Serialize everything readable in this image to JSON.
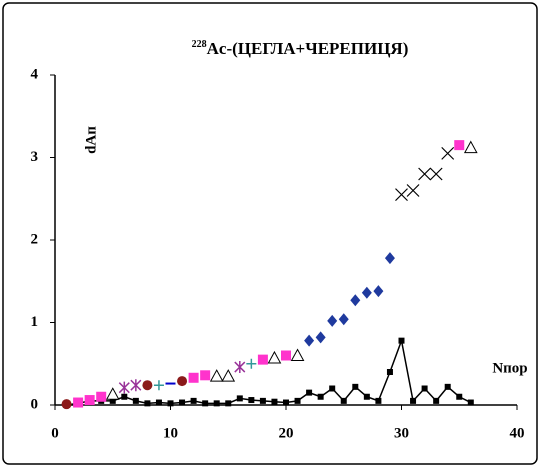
{
  "chart_data": {
    "type": "scatter",
    "title_superscript": "228",
    "title": "Ac-(ЦЕГЛА+ЧЕРЕПИЦЯ)",
    "y_label": "dAп",
    "x_label": "Nпор",
    "xlim": [
      0,
      40
    ],
    "ylim": [
      0,
      4
    ],
    "xticks": [
      0,
      10,
      20,
      30,
      40
    ],
    "yticks": [
      0,
      1,
      2,
      3,
      4
    ],
    "grid": false,
    "series": [
      {
        "marker": "line-square",
        "color": "#000000",
        "x": [
          1,
          2,
          3,
          4,
          5,
          6,
          7,
          8,
          9,
          10,
          11,
          12,
          13,
          14,
          15,
          16,
          17,
          18,
          19,
          20,
          21,
          22,
          23,
          24,
          25,
          26,
          27,
          28,
          29,
          30,
          31,
          32,
          33,
          34,
          35,
          36
        ],
        "values": [
          0,
          0.02,
          0.05,
          0.05,
          0.05,
          0.1,
          0.05,
          0.02,
          0.03,
          0.02,
          0.03,
          0.05,
          0.02,
          0.02,
          0.02,
          0.08,
          0.06,
          0.05,
          0.04,
          0.03,
          0.05,
          0.15,
          0.1,
          0.2,
          0.05,
          0.22,
          0.1,
          0.05,
          0.4,
          0.78,
          0.05,
          0.2,
          0.05,
          0.22,
          0.1,
          0.03
        ]
      },
      {
        "marker": "circle",
        "color": "#8b1a1a",
        "x": [
          1,
          8,
          11
        ],
        "values": [
          0.01,
          0.24,
          0.29
        ]
      },
      {
        "marker": "square",
        "color": "#ff33cc",
        "x": [
          2,
          3,
          4,
          12,
          13,
          18,
          20,
          35
        ],
        "values": [
          0.03,
          0.06,
          0.1,
          0.33,
          0.36,
          0.55,
          0.6,
          3.15
        ]
      },
      {
        "marker": "triangle",
        "color": "#000000",
        "x": [
          5,
          14,
          15,
          19,
          21,
          36
        ],
        "values": [
          0.13,
          0.35,
          0.35,
          0.57,
          0.6,
          3.12
        ]
      },
      {
        "marker": "asterisk",
        "color": "#993399",
        "x": [
          6,
          7,
          16
        ],
        "values": [
          0.21,
          0.24,
          0.46
        ]
      },
      {
        "marker": "plus",
        "color": "#339999",
        "x": [
          9,
          17
        ],
        "values": [
          0.24,
          0.5
        ]
      },
      {
        "marker": "dash",
        "color": "#0000cc",
        "x": [
          10
        ],
        "values": [
          0.26
        ]
      },
      {
        "marker": "diamond",
        "color": "#1f3a9e",
        "x": [
          22,
          23,
          24,
          25,
          26,
          27,
          28,
          29
        ],
        "values": [
          0.78,
          0.82,
          1.02,
          1.04,
          1.27,
          1.36,
          1.38,
          1.78
        ]
      },
      {
        "marker": "cross",
        "color": "#000000",
        "x": [
          30,
          31,
          32,
          33,
          34
        ],
        "values": [
          2.55,
          2.6,
          2.8,
          2.8,
          3.05
        ]
      }
    ]
  }
}
